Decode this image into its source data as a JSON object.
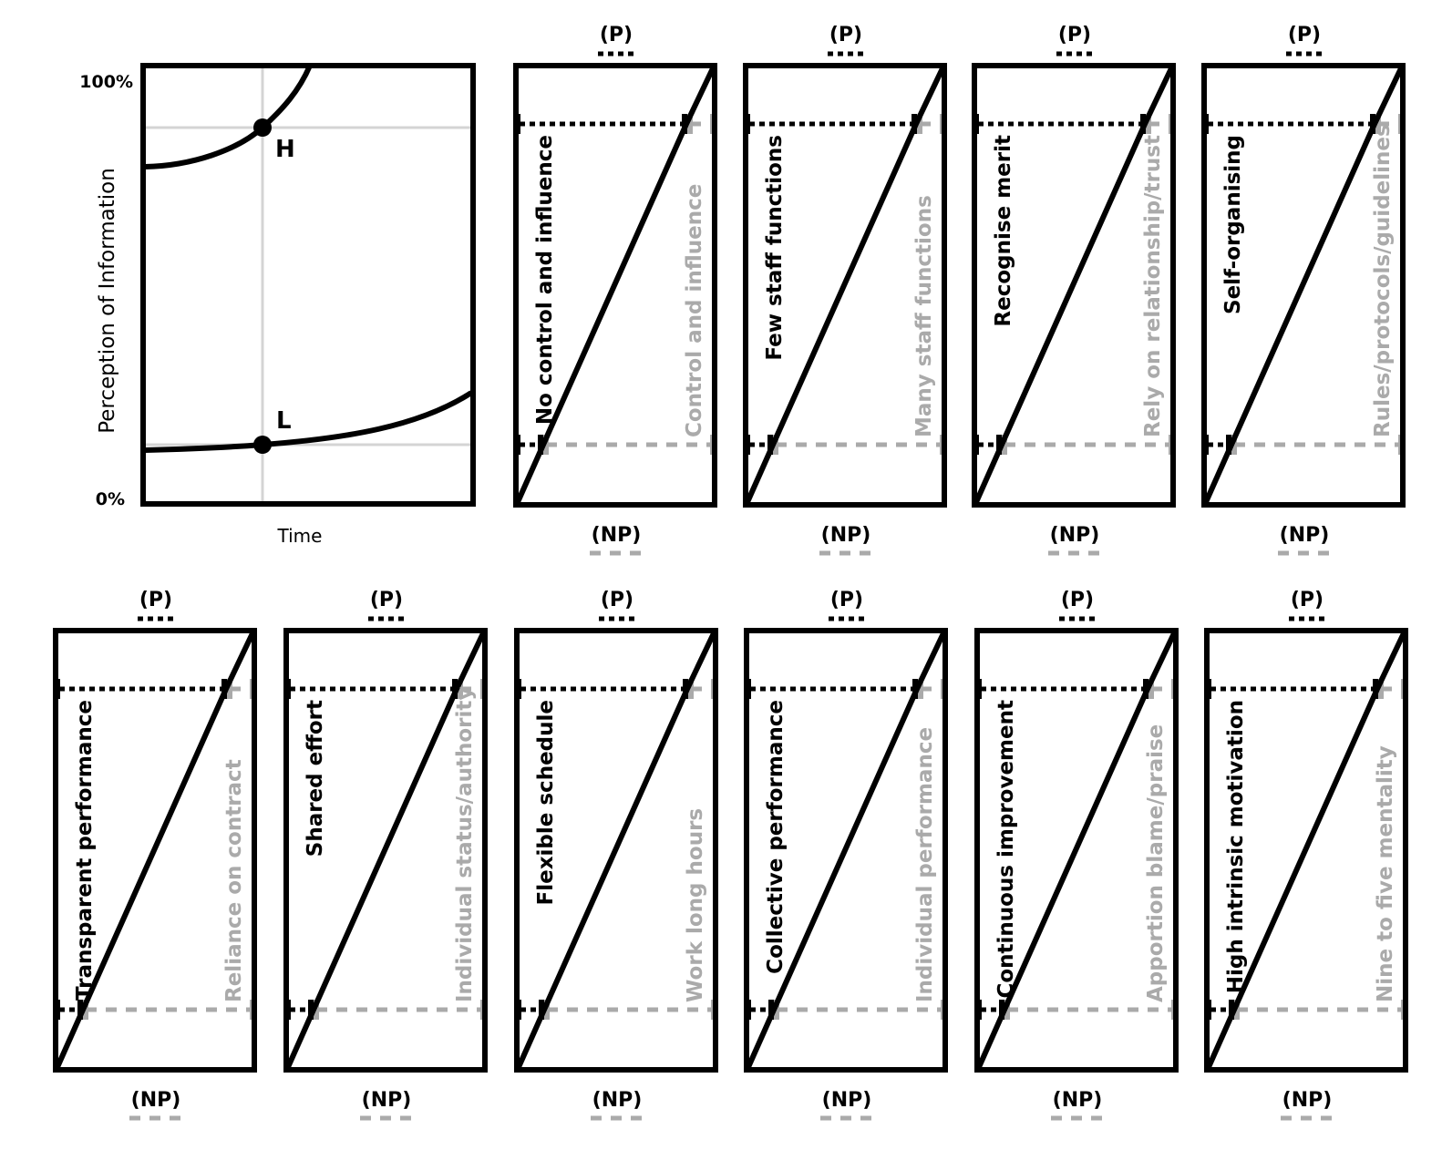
{
  "colors": {
    "ink": "#000000",
    "muted": "#aaaaaa",
    "grid": "#d4d4d4",
    "background": "#ffffff"
  },
  "legend": {
    "top_label": "(P)",
    "bottom_label": "(NP)",
    "top_style": "black dotted",
    "bottom_style": "grey dashed"
  },
  "chart_data": [
    {
      "type": "line",
      "title": "",
      "xlabel": "Time",
      "ylabel": "Perception of Information",
      "yticks": [
        "0%",
        "100%"
      ],
      "ylim": [
        0,
        100
      ],
      "grid": "partial (one vertical, two horizontal reference lines)",
      "series": [
        {
          "name": "H",
          "description": "upper convex curve, rising steeply",
          "points": [
            [
              0,
              77
            ],
            [
              0.36,
              86
            ],
            [
              0.5,
              100
            ]
          ]
        },
        {
          "name": "L",
          "description": "lower gently rising curve",
          "points": [
            [
              0,
              12
            ],
            [
              0.36,
              14
            ],
            [
              1.0,
              25
            ]
          ]
        }
      ],
      "annotations": [
        {
          "label": "H",
          "x": 0.36,
          "y": 86
        },
        {
          "label": "L",
          "x": 0.36,
          "y": 14
        }
      ]
    }
  ],
  "main_chart": {
    "ytick_top": "100%",
    "ytick_bottom": "0%",
    "ylabel": "Perception of Information",
    "xlabel": "Time",
    "point_h": "H",
    "point_l": "L"
  },
  "panels_top": [
    {
      "positive": "No control and influence",
      "negative": "Control and influence",
      "p_label": "(P)",
      "np_label": "(NP)"
    },
    {
      "positive": "Few staff functions",
      "negative": "Many staff functions",
      "p_label": "(P)",
      "np_label": "(NP)"
    },
    {
      "positive": "Recognise merit",
      "negative": "Rely on relationship/trust",
      "p_label": "(P)",
      "np_label": "(NP)"
    },
    {
      "positive": "Self-organising",
      "negative": "Rules/protocols/guidelines",
      "p_label": "(P)",
      "np_label": "(NP)"
    }
  ],
  "panels_bottom": [
    {
      "positive": "Transparent performance",
      "negative": "Reliance on contract",
      "p_label": "(P)",
      "np_label": "(NP)"
    },
    {
      "positive": "Shared effort",
      "negative": "Individual status/authority",
      "p_label": "(P)",
      "np_label": "(NP)"
    },
    {
      "positive": "Flexible schedule",
      "negative": "Work long hours",
      "p_label": "(P)",
      "np_label": "(NP)"
    },
    {
      "positive": "Collective performance",
      "negative": "Individual performance",
      "p_label": "(P)",
      "np_label": "(NP)"
    },
    {
      "positive": "Continuous improvement",
      "negative": "Apportion blame/praise",
      "p_label": "(P)",
      "np_label": "(NP)"
    },
    {
      "positive": "High intrinsic motivation",
      "negative": "Nine to five mentality",
      "p_label": "(P)",
      "np_label": "(NP)"
    }
  ]
}
